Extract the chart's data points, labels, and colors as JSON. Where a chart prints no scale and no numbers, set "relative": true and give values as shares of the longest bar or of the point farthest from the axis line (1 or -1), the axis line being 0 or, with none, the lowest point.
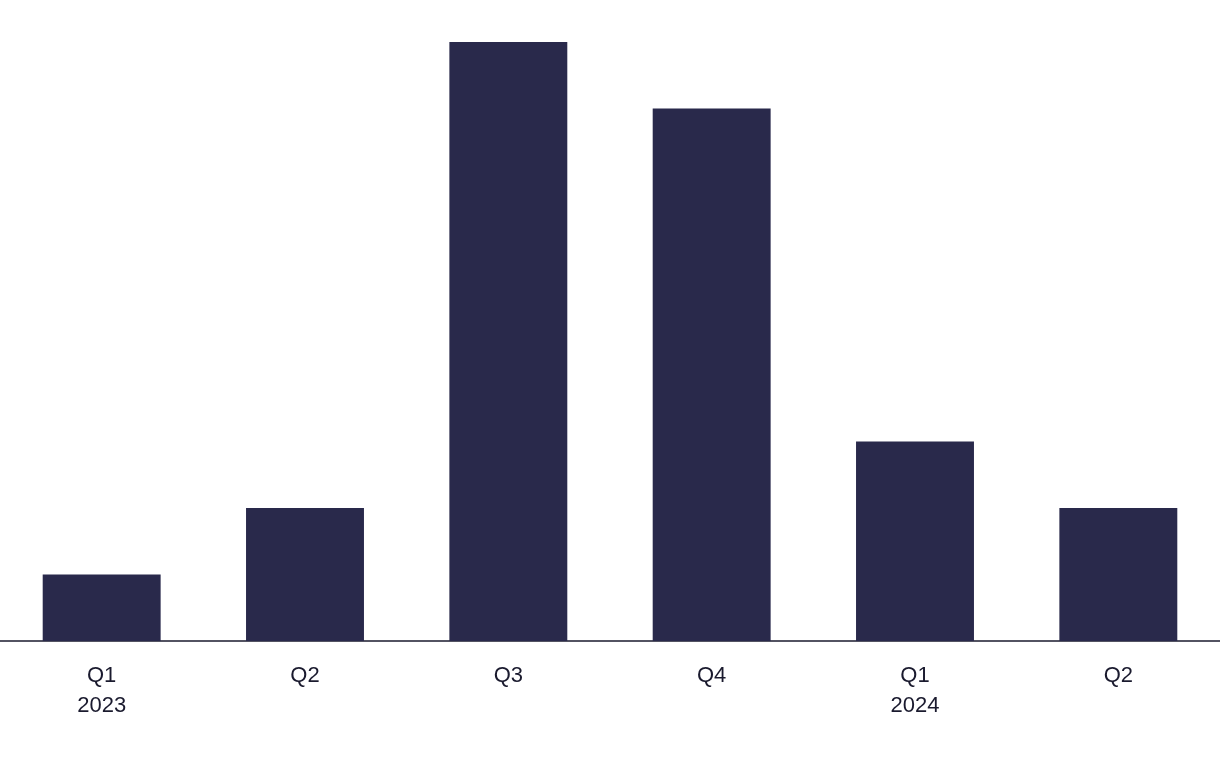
{
  "chart_data": {
    "type": "bar",
    "relative": true,
    "categories": [
      "Q1\n2023",
      "Q2",
      "Q3",
      "Q4",
      "Q1\n2024",
      "Q2"
    ],
    "values": [
      0.111,
      0.222,
      1,
      0.889,
      0.333,
      0.222
    ],
    "color": "#29294b"
  }
}
